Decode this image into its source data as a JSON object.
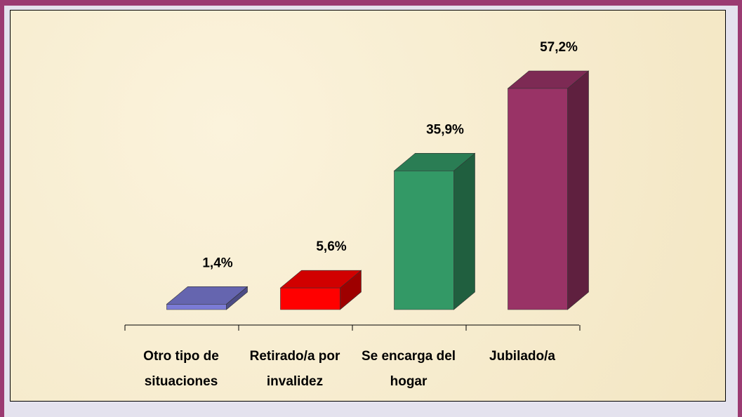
{
  "chart_data": {
    "type": "bar3d",
    "categories": [
      "Otro tipo de situaciones",
      "Retirado/a por invalidez",
      "Se encarga del hogar",
      "Jubilado/a"
    ],
    "values": [
      1.4,
      5.6,
      35.9,
      57.2
    ],
    "value_labels": [
      "1,4%",
      "5,6%",
      "35,9%",
      "57,2%"
    ],
    "colors": [
      "#7b7bd6",
      "#ff0000",
      "#339966",
      "#993366"
    ]
  }
}
